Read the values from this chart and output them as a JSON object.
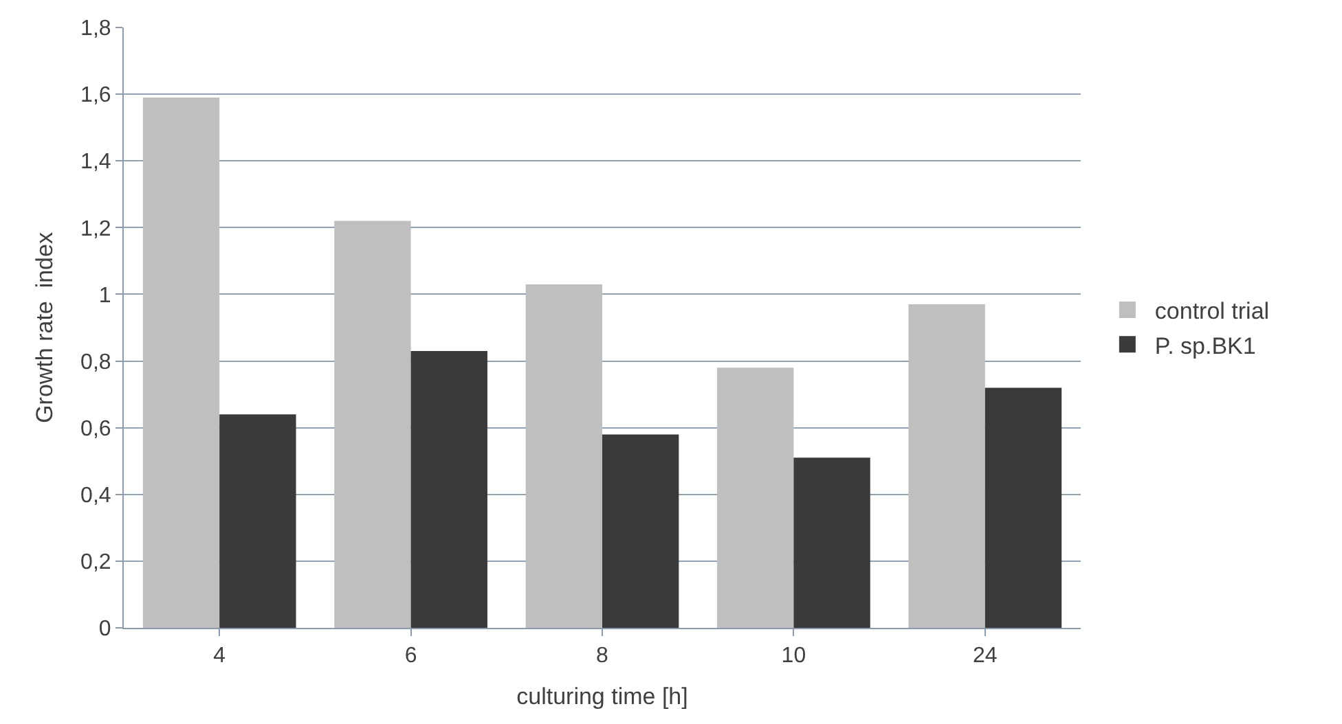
{
  "chart_data": {
    "type": "bar",
    "xlabel": "culturing time [h]",
    "ylabel": "Growth rate  index",
    "categories": [
      "4",
      "6",
      "8",
      "10",
      "24"
    ],
    "series": [
      {
        "name": "control trial",
        "color": "#bfbfbf",
        "values": [
          1.59,
          1.22,
          1.03,
          0.78,
          0.97
        ]
      },
      {
        "name": "P. sp.BK1",
        "color": "#3a3a3a",
        "values": [
          0.64,
          0.83,
          0.58,
          0.51,
          0.72
        ]
      }
    ],
    "ylim": [
      0,
      1.8
    ],
    "yticks": [
      0,
      {
        "value": 0.2,
        "label": "0,2"
      },
      {
        "value": 0.4,
        "label": "0,4"
      },
      {
        "value": 0.6,
        "label": "0,6"
      },
      {
        "value": 0.8,
        "label": "0,8"
      },
      1,
      {
        "value": 1.2,
        "label": "1,2"
      },
      {
        "value": 1.4,
        "label": "1,4"
      },
      {
        "value": 1.6,
        "label": "1,6"
      },
      {
        "value": 1.8,
        "label": "1,8"
      }
    ],
    "grid": "y",
    "legend": "right"
  }
}
